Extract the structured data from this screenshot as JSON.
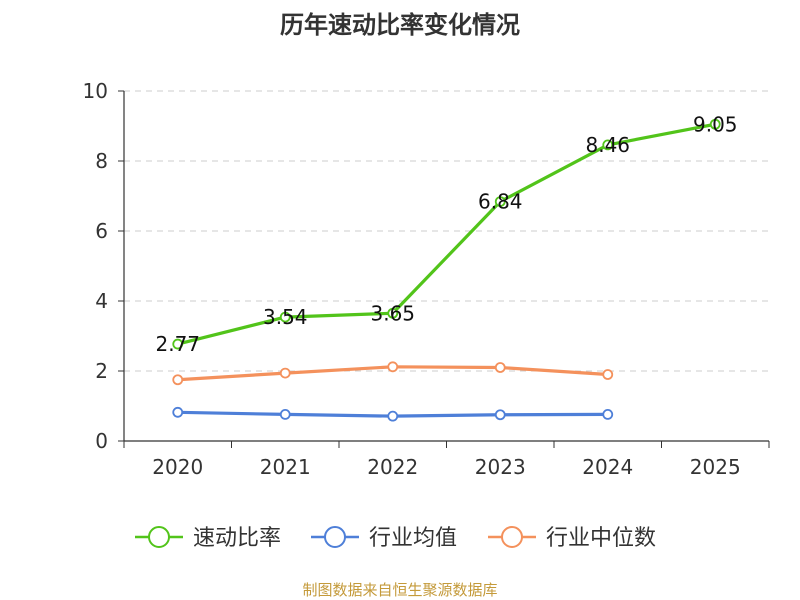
{
  "chart_data": {
    "type": "line",
    "title": "历年速动比率变化情况",
    "categories": [
      "2020",
      "2021",
      "2022",
      "2023",
      "2024",
      "2025"
    ],
    "ylim": [
      0,
      10
    ],
    "yticks": [
      0,
      2,
      4,
      6,
      8,
      10
    ],
    "grid": true,
    "legend_position": "bottom",
    "series": [
      {
        "name": "速动比率",
        "color": "#52c41a",
        "values": [
          2.77,
          3.54,
          3.65,
          6.84,
          8.46,
          9.05
        ],
        "labels": [
          "2.77",
          "3.54",
          "3.65",
          "6.84",
          "8.46",
          "9.05"
        ]
      },
      {
        "name": "行业均值",
        "color": "#4e7fd8",
        "values": [
          0.82,
          0.76,
          0.71,
          0.75,
          0.76,
          null
        ]
      },
      {
        "name": "行业中位数",
        "color": "#f4915c",
        "values": [
          1.75,
          1.94,
          2.12,
          2.1,
          1.9,
          null
        ]
      }
    ],
    "source": "制图数据来自恒生聚源数据库"
  }
}
